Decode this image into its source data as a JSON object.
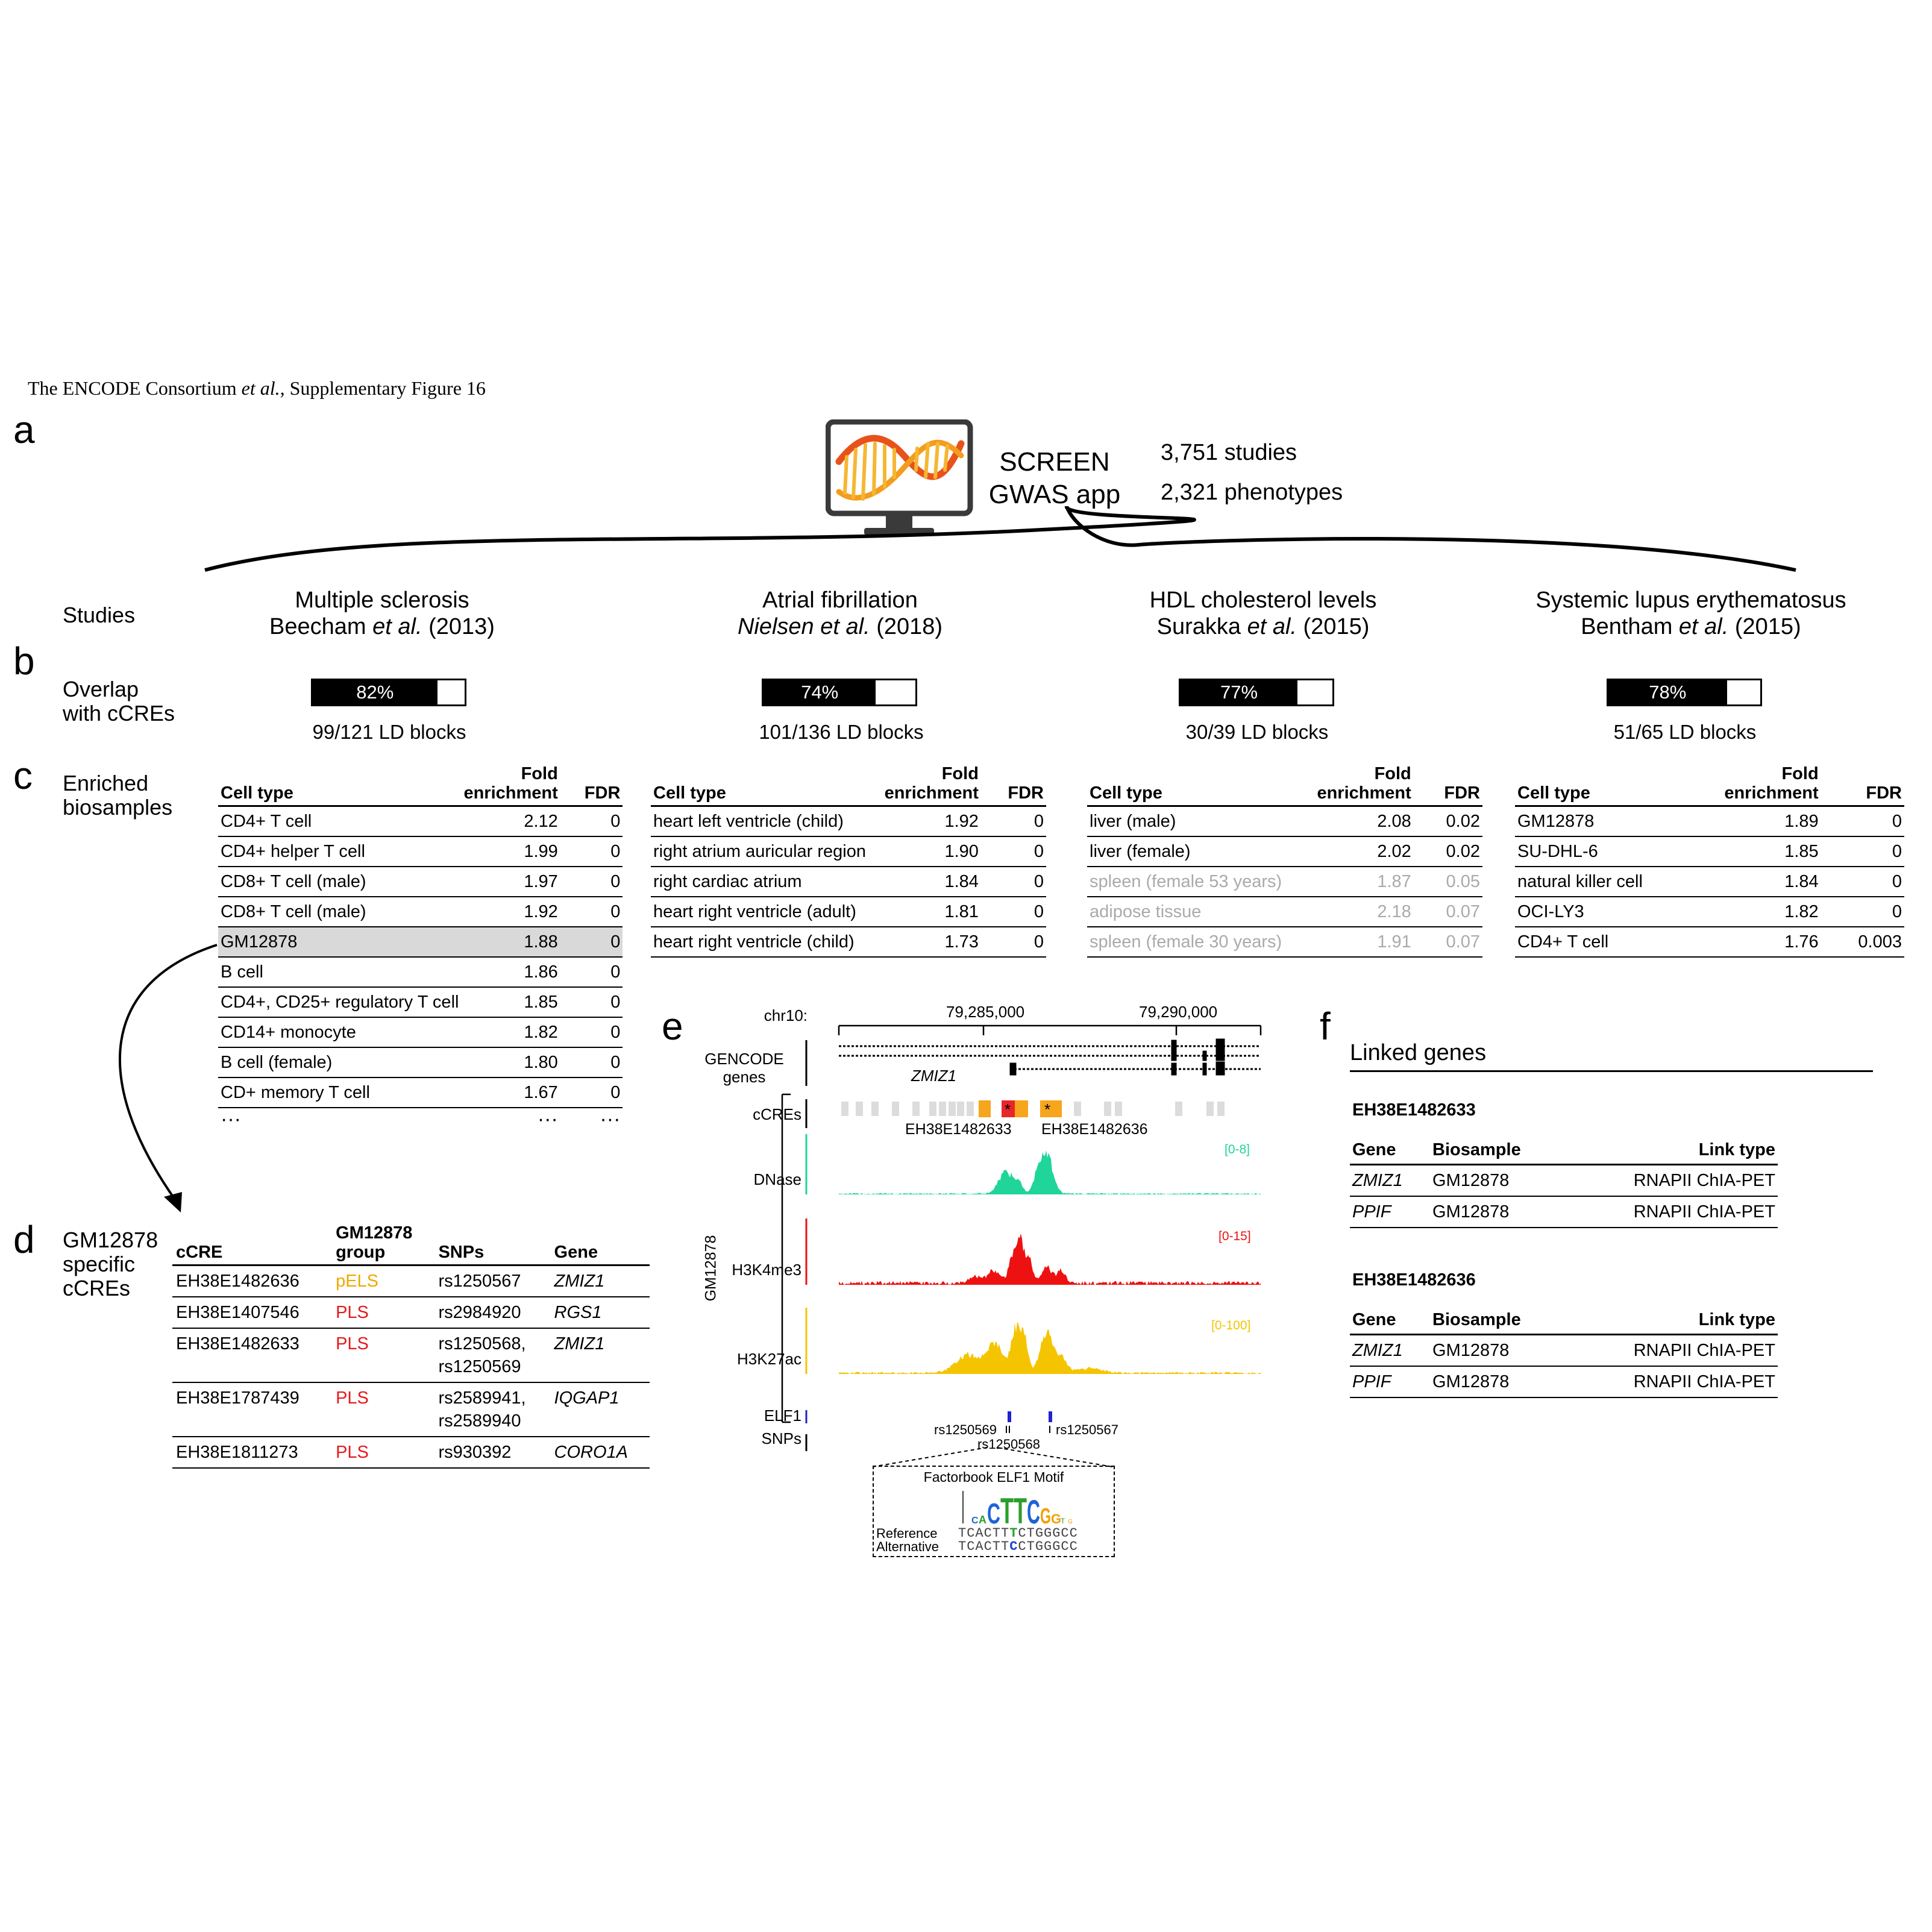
{
  "header": {
    "credit_main": "The ENCODE  Consortium ",
    "credit_etal": "et al.",
    "credit_tail": ", Supplementary Figure 16"
  },
  "panels": {
    "a": "a",
    "b": "b",
    "c": "c",
    "d": "d",
    "e": "e",
    "f": "f"
  },
  "app": {
    "title_line1": "SCREEN",
    "title_line2": "GWAS app",
    "studies_count": "3,751 studies",
    "phenotypes_count": "2,321 phenotypes"
  },
  "row_labels": {
    "studies": "Studies",
    "overlap_line1": "Overlap",
    "overlap_line2": "with cCREs",
    "enriched_line1": "Enriched",
    "enriched_line2": "biosamples",
    "specific_line1": "GM12878",
    "specific_line2": "specific",
    "specific_line3": "cCREs"
  },
  "studies": [
    {
      "disease": "Multiple sclerosis",
      "author": "Beecham ",
      "etal": "et al.",
      "year": " (2013)",
      "overlap_pct": 82,
      "overlap_label": "82%",
      "ld": "99/121 LD blocks"
    },
    {
      "disease": "Atrial fibrillation",
      "author": "Nielsen ",
      "etal": "et al.",
      "year": " (2018)",
      "overlap_pct": 74,
      "overlap_label": "74%",
      "ld": "101/136 LD blocks"
    },
    {
      "disease": "HDL cholesterol levels",
      "author": "Surakka ",
      "etal": "et al.",
      "year": " (2015)",
      "overlap_pct": 77,
      "overlap_label": "77%",
      "ld": "30/39 LD blocks"
    },
    {
      "disease": "Systemic lupus erythematosus",
      "author": "Bentham ",
      "etal": "et al.",
      "year": " (2015)",
      "overlap_pct": 78,
      "overlap_label": "78%",
      "ld": "51/65 LD blocks"
    }
  ],
  "enrich_headers": {
    "cell_type": "Cell type",
    "fold1": "Fold",
    "fold2": "enrichment",
    "fdr": "FDR"
  },
  "enrich_tables": [
    {
      "rows": [
        {
          "cell": "CD4+ T cell",
          "fold": "2.12",
          "fdr": "0"
        },
        {
          "cell": "CD4+ helper T cell",
          "fold": "1.99",
          "fdr": "0"
        },
        {
          "cell": "CD8+ T cell (male)",
          "fold": "1.97",
          "fdr": "0"
        },
        {
          "cell": "CD8+ T cell (male)",
          "fold": "1.92",
          "fdr": "0"
        },
        {
          "cell": "GM12878",
          "fold": "1.88",
          "fdr": "0"
        },
        {
          "cell": "B cell",
          "fold": "1.86",
          "fdr": "0"
        },
        {
          "cell": "CD4+, CD25+ regulatory T cell",
          "fold": "1.85",
          "fdr": "0"
        },
        {
          "cell": "CD14+ monocyte",
          "fold": "1.82",
          "fdr": "0"
        },
        {
          "cell": "B cell (female)",
          "fold": "1.80",
          "fdr": "0"
        },
        {
          "cell": "CD+ memory T cell",
          "fold": "1.67",
          "fdr": "0"
        }
      ],
      "ellipsis": "···"
    },
    {
      "rows": [
        {
          "cell": "heart left ventricle (child)",
          "fold": "1.92",
          "fdr": "0"
        },
        {
          "cell": "right atrium auricular region",
          "fold": "1.90",
          "fdr": "0"
        },
        {
          "cell": "right cardiac atrium",
          "fold": "1.84",
          "fdr": "0"
        },
        {
          "cell": "heart right ventricle (adult)",
          "fold": "1.81",
          "fdr": "0"
        },
        {
          "cell": "heart right ventricle (child)",
          "fold": "1.73",
          "fdr": "0"
        }
      ]
    },
    {
      "rows": [
        {
          "cell": "liver (male)",
          "fold": "2.08",
          "fdr": "0.02"
        },
        {
          "cell": "liver (female)",
          "fold": "2.02",
          "fdr": "0.02"
        },
        {
          "cell": "spleen (female 53 years)",
          "fold": "1.87",
          "fdr": "0.05"
        },
        {
          "cell": "adipose tissue",
          "fold": "2.18",
          "fdr": "0.07"
        },
        {
          "cell": "spleen (female 30 years)",
          "fold": "1.91",
          "fdr": "0.07"
        }
      ]
    },
    {
      "rows": [
        {
          "cell": "GM12878",
          "fold": "1.89",
          "fdr": "0"
        },
        {
          "cell": "SU-DHL-6",
          "fold": "1.85",
          "fdr": "0"
        },
        {
          "cell": "natural killer cell",
          "fold": "1.84",
          "fdr": "0"
        },
        {
          "cell": "OCI-LY3",
          "fold": "1.82",
          "fdr": "0"
        },
        {
          "cell": "CD4+ T cell",
          "fold": "1.76",
          "fdr": "0.003"
        }
      ]
    }
  ],
  "ccre_table": {
    "headers": {
      "ccre": "cCRE",
      "group1": "GM12878",
      "group2": "group",
      "snps": "SNPs",
      "gene": "Gene"
    },
    "rows": [
      {
        "ccre": "EH38E1482636",
        "group": "pELS",
        "snps": "rs1250567",
        "gene": "ZMIZ1"
      },
      {
        "ccre": "EH38E1407546",
        "group": "PLS",
        "snps": "rs2984920",
        "gene": "RGS1"
      },
      {
        "ccre": "EH38E1482633",
        "group": "PLS",
        "snps": "rs1250568,\nrs1250569",
        "gene": "ZMIZ1"
      },
      {
        "ccre": "EH38E1787439",
        "group": "PLS",
        "snps": "rs2589941,\nrs2589940",
        "gene": "IQGAP1"
      },
      {
        "ccre": "EH38E1811273",
        "group": "PLS",
        "snps": "rs930392",
        "gene": "CORO1A"
      }
    ]
  },
  "browser": {
    "chrom": "chr10:",
    "tick1": "79,285,000",
    "tick2": "79,290,000",
    "gencode1": "GENCODE",
    "gencode2": "genes",
    "gene_name": "ZMIZ1",
    "ccres_label": "cCREs",
    "ccre_left": "EH38E1482633",
    "ccre_right": "EH38E1482636",
    "cell_line": "GM12878",
    "tracks": [
      {
        "name": "DNase",
        "range": "[0-8]",
        "color": "#1fd59a"
      },
      {
        "name": "H3K4me3",
        "range": "[0-15]",
        "color": "#ee1111"
      },
      {
        "name": "H3K27ac",
        "range": "[0-100]",
        "color": "#f5c400"
      }
    ],
    "elf1": "ELF1",
    "snps_label": "SNPs",
    "snp_left": "rs1250569",
    "snp_mid": "rs1250568",
    "snp_right": "rs1250567",
    "motif_title": "Factorbook ELF1 Motif",
    "ref_label": "Reference",
    "alt_label": "Alternative",
    "ref_pre": "TCACTT",
    "ref_var": "T",
    "ref_post": "CTGGGCC",
    "alt_pre": "TCACTT",
    "alt_var": "C",
    "alt_post": "CTGGGCC"
  },
  "linked": {
    "title": "Linked genes",
    "headers": {
      "gene": "Gene",
      "biosample": "Biosample",
      "link": "Link type"
    },
    "groups": [
      {
        "ccre": "EH38E1482633",
        "rows": [
          {
            "gene": "ZMIZ1",
            "biosample": "GM12878",
            "link": "RNAPII ChIA-PET"
          },
          {
            "gene": "PPIF",
            "biosample": "GM12878",
            "link": "RNAPII ChIA-PET"
          }
        ]
      },
      {
        "ccre": "EH38E1482636",
        "rows": [
          {
            "gene": "ZMIZ1",
            "biosample": "GM12878",
            "link": "RNAPII ChIA-PET"
          },
          {
            "gene": "PPIF",
            "biosample": "GM12878",
            "link": "RNAPII ChIA-PET"
          }
        ]
      }
    ]
  }
}
